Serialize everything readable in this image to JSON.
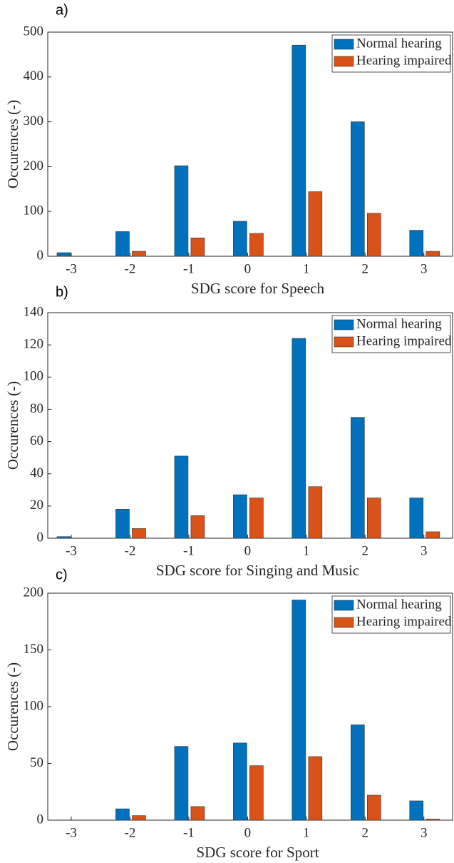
{
  "chart_data": [
    {
      "type": "bar",
      "panel_label": "a)",
      "xlabel": "SDG score for Speech",
      "ylabel": "Occurences (-)",
      "x": [
        -3,
        -2,
        -1,
        0,
        1,
        2,
        3
      ],
      "xlim": [
        -3.4,
        3.5
      ],
      "xticks": [
        -3,
        -2,
        -1,
        0,
        1,
        2,
        3
      ],
      "ylim": [
        0,
        500
      ],
      "yticks": [
        0,
        100,
        200,
        300,
        400,
        500
      ],
      "legend": "upper right",
      "series": [
        {
          "name": "Normal hearing",
          "color": "#0072bd",
          "values": [
            8,
            55,
            202,
            78,
            471,
            300,
            58
          ]
        },
        {
          "name": "Hearing impaired",
          "color": "#d95319",
          "values": [
            0,
            11,
            41,
            51,
            144,
            96,
            11
          ]
        }
      ]
    },
    {
      "type": "bar",
      "panel_label": "b)",
      "xlabel": "SDG score for Singing and Music",
      "ylabel": "Occurences (-)",
      "x": [
        -3,
        -2,
        -1,
        0,
        1,
        2,
        3
      ],
      "xlim": [
        -3.4,
        3.5
      ],
      "xticks": [
        -3,
        -2,
        -1,
        0,
        1,
        2,
        3
      ],
      "ylim": [
        0,
        140
      ],
      "yticks": [
        0,
        20,
        40,
        60,
        80,
        100,
        120,
        140
      ],
      "legend": "upper right",
      "series": [
        {
          "name": "Normal hearing",
          "color": "#0072bd",
          "values": [
            1,
            18,
            51,
            27,
            124,
            75,
            25
          ]
        },
        {
          "name": "Hearing impaired",
          "color": "#d95319",
          "values": [
            0,
            6,
            14,
            25,
            32,
            25,
            4
          ]
        }
      ]
    },
    {
      "type": "bar",
      "panel_label": "c)",
      "xlabel": "SDG score for Sport",
      "ylabel": "Occurences (-)",
      "x": [
        -3,
        -2,
        -1,
        0,
        1,
        2,
        3
      ],
      "xlim": [
        -3.4,
        3.5
      ],
      "xticks": [
        -3,
        -2,
        -1,
        0,
        1,
        2,
        3
      ],
      "ylim": [
        0,
        200
      ],
      "yticks": [
        0,
        50,
        100,
        150,
        200
      ],
      "legend": "upper right",
      "series": [
        {
          "name": "Normal hearing",
          "color": "#0072bd",
          "values": [
            0,
            10,
            65,
            68,
            194,
            84,
            17
          ]
        },
        {
          "name": "Hearing impaired",
          "color": "#d95319",
          "values": [
            0,
            4,
            12,
            48,
            56,
            22,
            1
          ]
        }
      ]
    }
  ]
}
